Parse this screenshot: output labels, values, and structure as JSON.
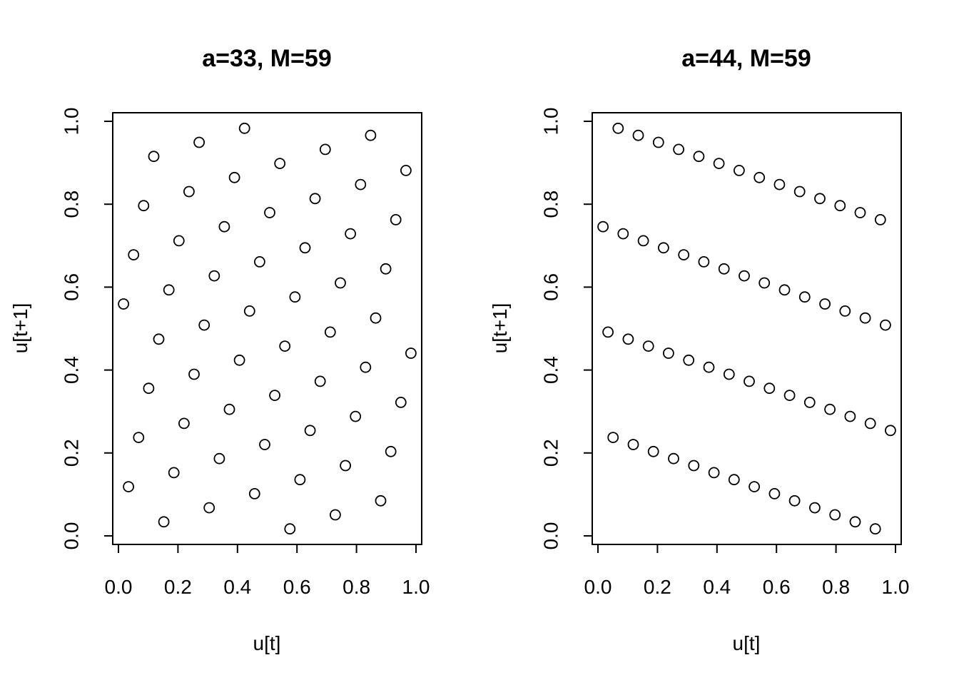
{
  "chart_data": [
    {
      "type": "scatter",
      "title": "a=33, M=59",
      "xlabel": "u[t]",
      "ylabel": "u[t+1]",
      "xlim": [
        0,
        1
      ],
      "ylim": [
        0,
        1
      ],
      "x_ticks": [
        "0.0",
        "0.2",
        "0.4",
        "0.6",
        "0.8",
        "1.0"
      ],
      "y_ticks": [
        "0.0",
        "0.2",
        "0.4",
        "0.6",
        "0.8",
        "1.0"
      ],
      "grid": false,
      "multiplier": 33,
      "modulus": 59,
      "marker": "open-circle"
    },
    {
      "type": "scatter",
      "title": "a=44, M=59",
      "xlabel": "u[t]",
      "ylabel": "u[t+1]",
      "xlim": [
        0,
        1
      ],
      "ylim": [
        0,
        1
      ],
      "x_ticks": [
        "0.0",
        "0.2",
        "0.4",
        "0.6",
        "0.8",
        "1.0"
      ],
      "y_ticks": [
        "0.0",
        "0.2",
        "0.4",
        "0.6",
        "0.8",
        "1.0"
      ],
      "grid": false,
      "multiplier": 44,
      "modulus": 59,
      "marker": "open-circle"
    }
  ]
}
